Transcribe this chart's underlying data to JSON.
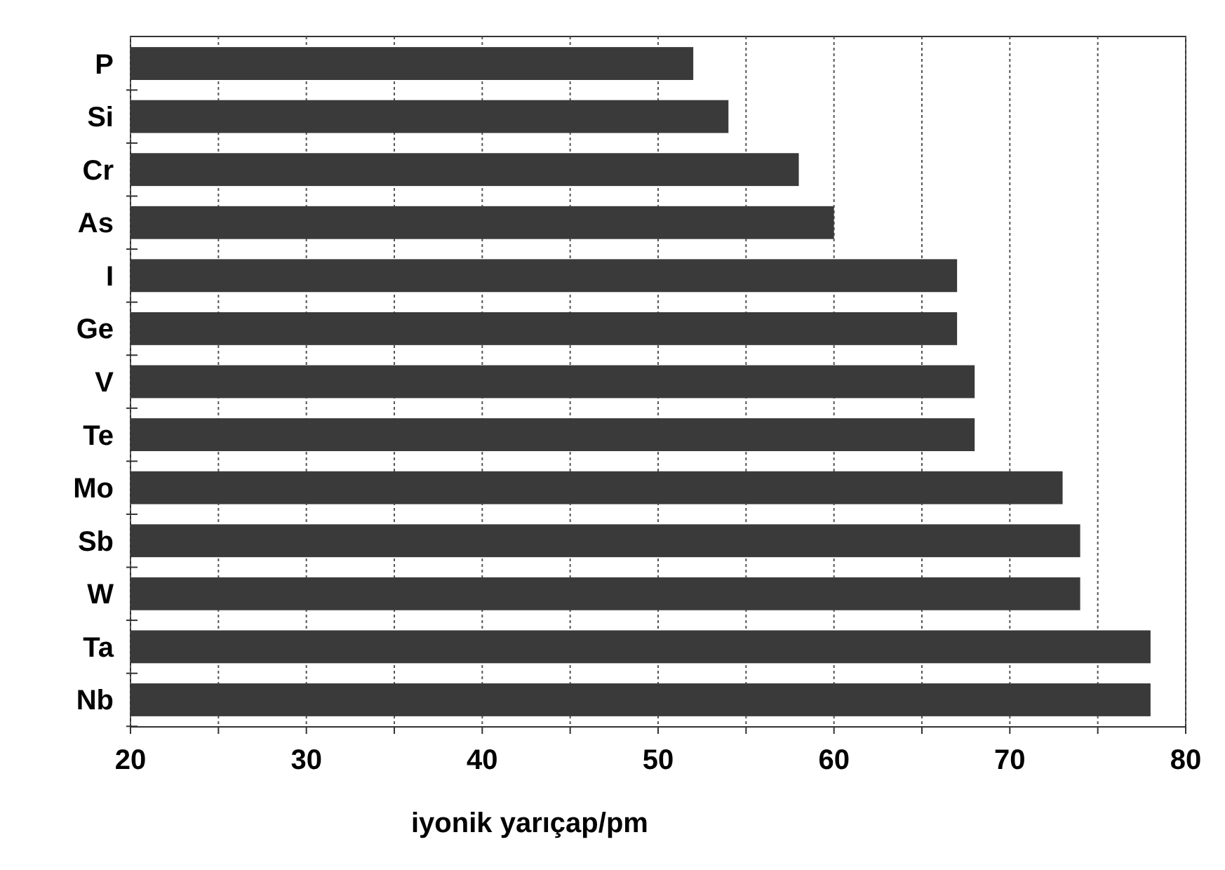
{
  "chart_data": {
    "type": "bar",
    "orientation": "horizontal",
    "xlabel": "iyonik yarıçap/pm",
    "categories": [
      "P",
      "Si",
      "Cr",
      "As",
      "I",
      "Ge",
      "V",
      "Te",
      "Mo",
      "Sb",
      "W",
      "Ta",
      "Nb"
    ],
    "values": [
      52,
      54,
      58,
      60,
      67,
      67,
      68,
      68,
      73,
      74,
      74,
      78,
      78
    ],
    "color": "#3a3a3a",
    "xlim": [
      20,
      80
    ],
    "xticks": [
      20,
      {
        "value": 25,
        "label": null
      },
      30,
      {
        "value": 35,
        "label": null
      },
      40,
      {
        "value": 45,
        "label": null
      },
      50,
      {
        "value": 55,
        "label": null
      },
      60,
      {
        "value": 65,
        "label": null
      },
      70,
      {
        "value": 75,
        "label": null
      },
      80
    ],
    "grid": "x"
  }
}
